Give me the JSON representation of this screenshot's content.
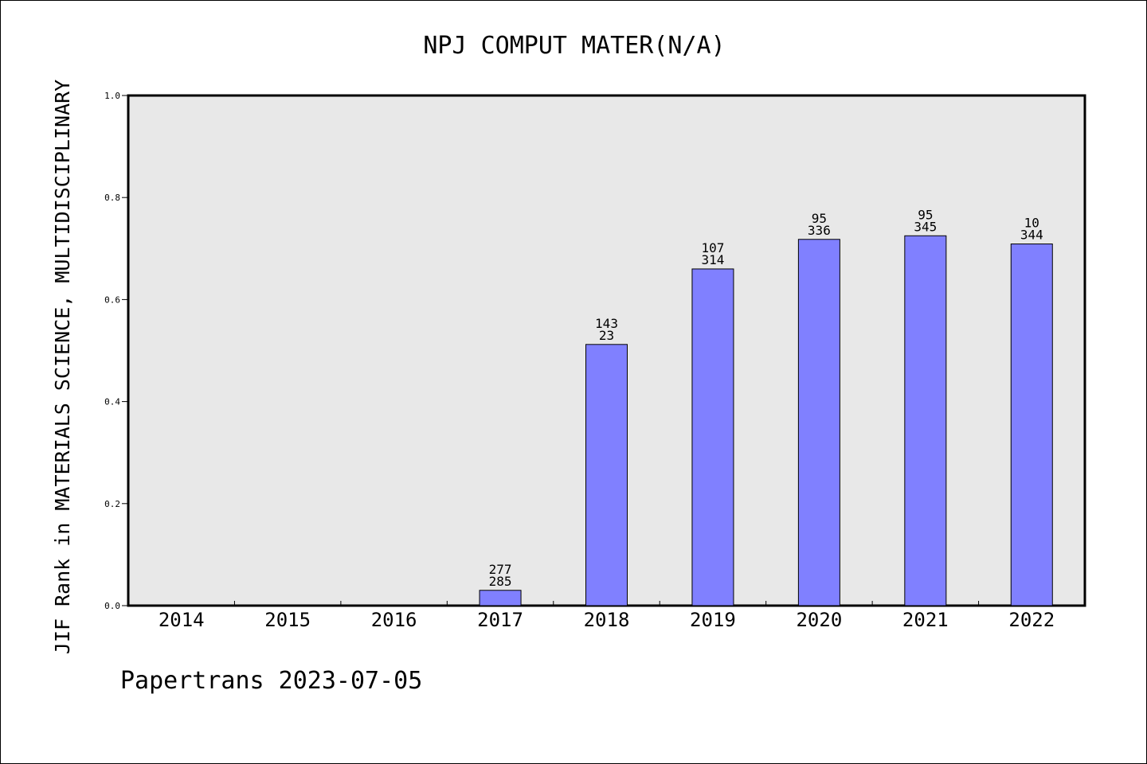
{
  "chart_data": {
    "type": "bar",
    "title": "NPJ COMPUT MATER(N/A)",
    "ylabel": "JIF Rank in MATERIALS SCIENCE, MULTIDISCIPLINARY",
    "xlabel": "",
    "ylim": [
      0,
      1.0
    ],
    "yticks": [
      "0.0",
      "0.2",
      "0.4",
      "0.6",
      "0.8",
      "1.0"
    ],
    "yticks_values": [
      0,
      0.2,
      0.4,
      0.6,
      0.8,
      1.0
    ],
    "categories": [
      "2014",
      "2015",
      "2016",
      "2017",
      "2018",
      "2019",
      "2020",
      "2021",
      "2022"
    ],
    "values": [
      0,
      0,
      0,
      0.03,
      0.512,
      0.66,
      0.718,
      0.725,
      0.709
    ],
    "labels_top": [
      "",
      "",
      "",
      "277",
      "143",
      "107",
      "95",
      "95",
      "10"
    ],
    "labels_bottom": [
      "",
      "",
      "",
      "285",
      "23",
      "314",
      "336",
      "345",
      "344"
    ],
    "bar_color": "#8080ff",
    "plot_background": "#e8e8e8",
    "grid": false,
    "legend": "none"
  },
  "footer": "Papertrans 2023-07-05"
}
